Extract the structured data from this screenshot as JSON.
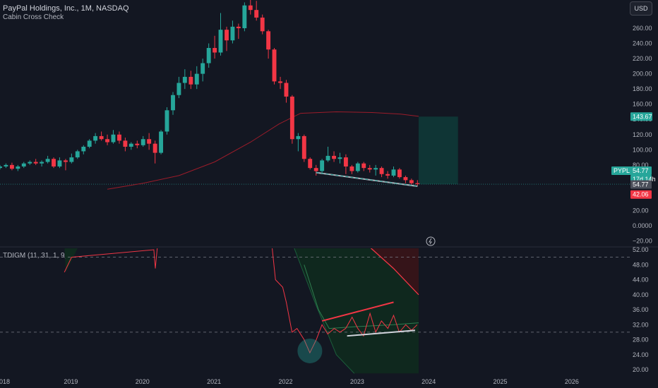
{
  "header": {
    "title": "PayPal Holdings, Inc., 1M, NASDAQ",
    "subtitle": "Cabin Cross Check",
    "currency_button": "USD",
    "indicator_label": "TDIGM (11, 31, 1, 9)"
  },
  "colors": {
    "background": "#131722",
    "up": "#26a69a",
    "down": "#f23645",
    "ma_line": "#9b1c2a",
    "target_zone": "#0f3b38",
    "stop_zone": "#4a1520",
    "grid_dashed": "#787b86"
  },
  "chart_data": [
    {
      "type": "candlestick",
      "title": "PayPal Holdings, Inc., 1M, NASDAQ",
      "ylim": [
        -20,
        270
      ],
      "price_ticks": [
        "260.00",
        "240.00",
        "220.00",
        "200.00",
        "180.00",
        "160.00",
        "140.00",
        "120.00",
        "100.00",
        "80.00",
        "60.00",
        "40.00",
        "20.00",
        "0.0000",
        "−20.00"
      ],
      "x_tick_labels": [
        "2018",
        "2019",
        "2020",
        "2021",
        "2022",
        "2023",
        "2024",
        "2025",
        "2026"
      ],
      "x_ticks": [
        2018,
        2019,
        2020,
        2021,
        2022,
        2023,
        2024,
        2025,
        2026
      ],
      "xlim": [
        2018.0,
        2026.8
      ],
      "candles": [
        [
          2018.0,
          76,
          80,
          74,
          78
        ],
        [
          2018.083,
          78,
          82,
          76,
          80
        ],
        [
          2018.167,
          80,
          83,
          73,
          75
        ],
        [
          2018.25,
          75,
          80,
          72,
          78
        ],
        [
          2018.333,
          78,
          84,
          76,
          82
        ],
        [
          2018.417,
          82,
          86,
          80,
          84
        ],
        [
          2018.5,
          84,
          88,
          80,
          82
        ],
        [
          2018.583,
          82,
          86,
          78,
          84
        ],
        [
          2018.667,
          84,
          92,
          82,
          88
        ],
        [
          2018.75,
          88,
          90,
          76,
          78
        ],
        [
          2018.833,
          78,
          90,
          76,
          86
        ],
        [
          2018.917,
          86,
          88,
          73,
          84
        ],
        [
          2019.0,
          84,
          95,
          82,
          90
        ],
        [
          2019.083,
          90,
          100,
          88,
          98
        ],
        [
          2019.167,
          98,
          106,
          94,
          104
        ],
        [
          2019.25,
          104,
          114,
          102,
          112
        ],
        [
          2019.333,
          112,
          122,
          108,
          118
        ],
        [
          2019.417,
          118,
          124,
          112,
          114
        ],
        [
          2019.5,
          114,
          120,
          106,
          110
        ],
        [
          2019.583,
          110,
          126,
          108,
          120
        ],
        [
          2019.667,
          120,
          124,
          108,
          112
        ],
        [
          2019.75,
          112,
          116,
          98,
          104
        ],
        [
          2019.833,
          104,
          110,
          100,
          108
        ],
        [
          2019.917,
          108,
          112,
          102,
          106
        ],
        [
          2020.0,
          106,
          118,
          104,
          114
        ],
        [
          2020.083,
          114,
          122,
          100,
          108
        ],
        [
          2020.167,
          108,
          112,
          82,
          96
        ],
        [
          2020.25,
          96,
          126,
          94,
          124
        ],
        [
          2020.333,
          124,
          156,
          120,
          152
        ],
        [
          2020.417,
          152,
          176,
          146,
          172
        ],
        [
          2020.5,
          172,
          196,
          168,
          188
        ],
        [
          2020.583,
          188,
          206,
          180,
          196
        ],
        [
          2020.667,
          196,
          204,
          180,
          186
        ],
        [
          2020.75,
          186,
          210,
          180,
          200
        ],
        [
          2020.833,
          200,
          220,
          190,
          214
        ],
        [
          2020.917,
          214,
          240,
          208,
          234
        ],
        [
          2021.0,
          234,
          250,
          220,
          228
        ],
        [
          2021.083,
          228,
          280,
          224,
          258
        ],
        [
          2021.167,
          258,
          262,
          230,
          244
        ],
        [
          2021.25,
          244,
          270,
          240,
          262
        ],
        [
          2021.333,
          262,
          266,
          246,
          260
        ],
        [
          2021.417,
          260,
          294,
          256,
          290
        ],
        [
          2021.5,
          290,
          308,
          278,
          284
        ],
        [
          2021.583,
          284,
          296,
          270,
          274
        ],
        [
          2021.667,
          274,
          278,
          252,
          256
        ],
        [
          2021.75,
          256,
          258,
          220,
          232
        ],
        [
          2021.833,
          232,
          234,
          186,
          190
        ],
        [
          2021.917,
          190,
          196,
          180,
          188
        ],
        [
          2022.0,
          188,
          192,
          162,
          170
        ],
        [
          2022.083,
          170,
          172,
          108,
          114
        ],
        [
          2022.167,
          114,
          122,
          98,
          118
        ],
        [
          2022.25,
          118,
          120,
          84,
          88
        ],
        [
          2022.333,
          88,
          90,
          74,
          76
        ],
        [
          2022.417,
          76,
          80,
          66,
          72
        ],
        [
          2022.5,
          72,
          88,
          70,
          86
        ],
        [
          2022.583,
          86,
          104,
          84,
          92
        ],
        [
          2022.667,
          92,
          98,
          84,
          88
        ],
        [
          2022.75,
          88,
          96,
          82,
          90
        ],
        [
          2022.833,
          90,
          94,
          68,
          78
        ],
        [
          2022.917,
          78,
          80,
          68,
          72
        ],
        [
          2023.0,
          72,
          84,
          70,
          82
        ],
        [
          2023.083,
          82,
          84,
          72,
          76
        ],
        [
          2023.167,
          76,
          80,
          70,
          74
        ],
        [
          2023.25,
          74,
          80,
          66,
          76
        ],
        [
          2023.333,
          76,
          78,
          64,
          68
        ],
        [
          2023.417,
          68,
          72,
          62,
          66
        ],
        [
          2023.5,
          66,
          78,
          64,
          74
        ],
        [
          2023.583,
          74,
          76,
          62,
          64
        ],
        [
          2023.667,
          64,
          66,
          56,
          60
        ],
        [
          2023.75,
          60,
          62,
          54,
          56
        ],
        [
          2023.833,
          56,
          60,
          52,
          54.77
        ]
      ],
      "moving_average": [
        [
          2019.5,
          48
        ],
        [
          2020.0,
          56
        ],
        [
          2020.5,
          66
        ],
        [
          2021.0,
          84
        ],
        [
          2021.5,
          110
        ],
        [
          2021.9,
          134
        ],
        [
          2022.2,
          148
        ],
        [
          2022.7,
          150
        ],
        [
          2023.2,
          149
        ],
        [
          2023.6,
          147
        ],
        [
          2023.85,
          144
        ]
      ],
      "trendline_lows": [
        [
          2022.417,
          70
        ],
        [
          2023.833,
          52
        ]
      ],
      "target_zone": {
        "x0": 2023.85,
        "x1": 2024.4,
        "y0": 54.77,
        "y1": 143.67
      },
      "stop_zone": {
        "x0": 2023.85,
        "x1": 2024.4,
        "y0": 42.06,
        "y1": 54.77
      },
      "price_labels": {
        "target": "143.67",
        "symbol": "PYPL",
        "last": "54.77",
        "countdown": "17d 14h",
        "last2": "54.77",
        "stop": "42.06"
      }
    },
    {
      "type": "line",
      "title": "TDIGM (11, 31, 1, 9)",
      "ylim": [
        19,
        53
      ],
      "ticks": [
        "52.00",
        "48.00",
        "44.00",
        "40.00",
        "36.00",
        "32.00",
        "28.00",
        "24.00",
        "20.00"
      ],
      "dashed_levels": [
        50,
        30
      ],
      "rsi_line": [
        [
          2018.9,
          46
        ],
        [
          2019.0,
          50
        ],
        [
          2020.15,
          52
        ],
        [
          2020.17,
          47
        ],
        [
          2020.2,
          53
        ],
        [
          2021.8,
          53
        ],
        [
          2021.85,
          44
        ],
        [
          2021.95,
          42
        ],
        [
          2022.0,
          38
        ],
        [
          2022.08,
          30
        ],
        [
          2022.15,
          31
        ],
        [
          2022.25,
          28
        ],
        [
          2022.33,
          24.5
        ],
        [
          2022.42,
          28
        ],
        [
          2022.5,
          32
        ],
        [
          2022.58,
          29.5
        ],
        [
          2022.67,
          31
        ],
        [
          2022.75,
          30
        ],
        [
          2022.83,
          31
        ],
        [
          2022.92,
          34
        ],
        [
          2023.0,
          31
        ],
        [
          2023.08,
          29
        ],
        [
          2023.17,
          35
        ],
        [
          2023.25,
          30
        ],
        [
          2023.33,
          33
        ],
        [
          2023.42,
          31
        ],
        [
          2023.5,
          34.5
        ],
        [
          2023.58,
          30
        ],
        [
          2023.67,
          32
        ],
        [
          2023.75,
          30.5
        ],
        [
          2023.83,
          32
        ]
      ],
      "band_upper_red": [
        [
          2023.15,
          53
        ],
        [
          2023.5,
          47
        ],
        [
          2023.85,
          40
        ]
      ],
      "band_lower_green": [
        [
          2022.1,
          53
        ],
        [
          2022.4,
          38
        ],
        [
          2022.7,
          24
        ],
        [
          2022.95,
          19
        ]
      ],
      "signal_green": [
        [
          2022.25,
          48
        ],
        [
          2022.45,
          36
        ],
        [
          2022.6,
          31
        ],
        [
          2023.0,
          31.5
        ],
        [
          2023.5,
          32
        ],
        [
          2023.85,
          32.5
        ]
      ],
      "divergence_top": [
        [
          2022.5,
          33
        ],
        [
          2023.5,
          38
        ]
      ],
      "divergence_bottom": [
        [
          2022.85,
          29
        ],
        [
          2023.8,
          30.5
        ]
      ],
      "circle_center": [
        2022.33,
        25
      ],
      "legend_visible": false
    }
  ]
}
